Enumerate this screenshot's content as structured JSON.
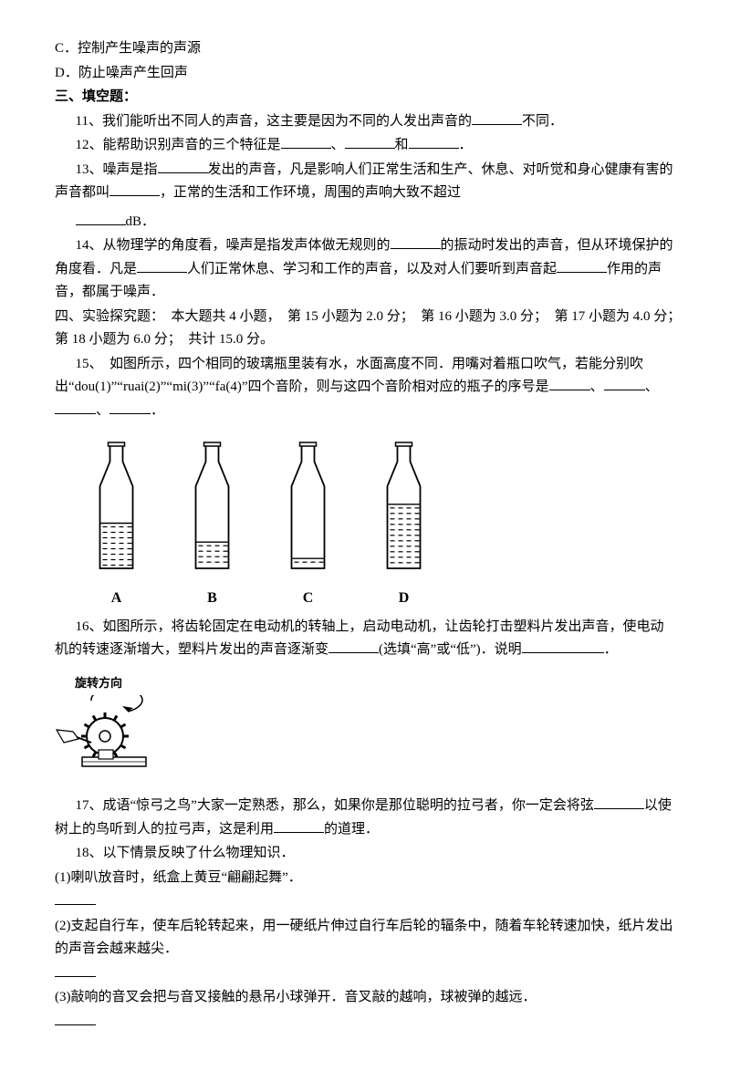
{
  "optC": "C．控制产生噪声的声源",
  "optD": "D．防止噪声产生回声",
  "section3": "三、填空题：",
  "q11a": "11、我们能听出不同人的声音，这主要是因为不同的人发出声音的",
  "q11b": "不同．",
  "q12a": "12、能帮助识别声音的三个特征是",
  "q12mid1": "、",
  "q12mid2": "和",
  "q12end": "．",
  "q13a": "13、噪声是指",
  "q13b": "发出的声音，凡是影响人们正常生活和生产、休息、对听觉和身心健康有害的声音都叫",
  "q13c": "，正常的生活和工作环境，周围的声响大致不超过",
  "q13d": "dB．",
  "q14a": "14、从物理学的角度看，噪声是指发声体做无规则的",
  "q14b": "的振动时发出的声音，但从环境保护的角度看．凡是",
  "q14c": "人们正常休息、学习和工作的声音，以及对人们要听到声音起",
  "q14d": "作用的声音，都属于噪声．",
  "section4": "四、实验探究题：　本大题共 4 小题，　第 15 小题为 2.0 分；　第 16 小题为 3.0 分；　第 17 小题为 4.0 分；　第 18 小题为 6.0 分；　共计 15.0 分。",
  "q15a": "15、　如图所示，四个相同的玻璃瓶里装有水，水面高度不同．用嘴对着瓶口吹气，若能分别吹出“dou(1)”“ruai(2)”“mi(3)”“fa(4)”四个音阶，则与这四个音阶相对应的瓶子的序号是",
  "q15sep": "、",
  "q15end": "．",
  "labelA": "A",
  "labelB": "B",
  "labelC": "C",
  "labelD": "D",
  "q16a": "16、如图所示，将齿轮固定在电动机的转轴上，启动电动机，让齿轮打击塑料片发出声音，使电动机的转速逐渐增大，塑料片发出的声音逐渐变",
  "q16b": "(选填“高”或“低”)．说明",
  "q16c": "．",
  "gearCaption": "旋转方向",
  "q17a": "17、成语“惊弓之鸟”大家一定熟悉，那么，如果你是那位聪明的拉弓者，你一定会将弦",
  "q17b": "以使树上的鸟听到人的拉弓声，这是利用",
  "q17c": "的道理．",
  "q18": "18、以下情景反映了什么物理知识．",
  "q18_1": "(1)喇叭放音时，纸盒上黄豆“翩翩起舞”．",
  "q18_2": "(2)支起自行车，使车后轮转起来，用一硬纸片伸过自行车后轮的辐条中，随着车轮转速加快，纸片发出的声音会越来越尖．",
  "q18_3": "(3)敲响的音叉会把与音叉接触的悬吊小球弹开．音叉敲的越响，球被弹的越远．",
  "bottles": {
    "bodyW": 36,
    "bodyH": 90,
    "neckH": 45,
    "neckW": 14,
    "fills": {
      "A": 0.55,
      "B": 0.32,
      "C": 0.12,
      "D": 0.78
    }
  }
}
